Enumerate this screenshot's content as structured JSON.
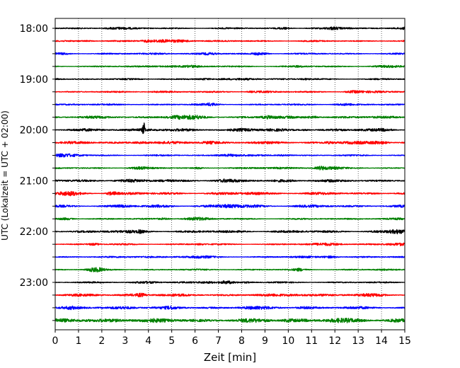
{
  "chart_data": {
    "type": "line",
    "chart_kind": "helicorder",
    "xlabel": "Zeit  [min]",
    "ylabel": "UTC (Lokalzeit = UTC + 02:00)",
    "xlim": [
      0,
      15
    ],
    "xticks": [
      0,
      1,
      2,
      3,
      4,
      5,
      6,
      7,
      8,
      9,
      10,
      11,
      12,
      13,
      14,
      15
    ],
    "x_gridlines": "dotted, every 1 min",
    "y_tick_labels": [
      "18:00",
      "19:00",
      "20:00",
      "21:00",
      "22:00",
      "23:00"
    ],
    "trace_interval_minutes": 15,
    "color_cycle": [
      "#000000",
      "#ff0000",
      "#0000ff",
      "#008000"
    ],
    "traces": [
      {
        "start": "18:00",
        "color": "#000000",
        "amplitude": "low"
      },
      {
        "start": "18:15",
        "color": "#ff0000",
        "amplitude": "low"
      },
      {
        "start": "18:30",
        "color": "#0000ff",
        "amplitude": "low"
      },
      {
        "start": "18:45",
        "color": "#008000",
        "amplitude": "low"
      },
      {
        "start": "19:00",
        "color": "#000000",
        "amplitude": "low"
      },
      {
        "start": "19:15",
        "color": "#ff0000",
        "amplitude": "low"
      },
      {
        "start": "19:30",
        "color": "#0000ff",
        "amplitude": "low"
      },
      {
        "start": "19:45",
        "color": "#008000",
        "amplitude": "medium"
      },
      {
        "start": "20:00",
        "color": "#000000",
        "amplitude": "medium",
        "event_at_min": 3.8
      },
      {
        "start": "20:15",
        "color": "#ff0000",
        "amplitude": "medium"
      },
      {
        "start": "20:30",
        "color": "#0000ff",
        "amplitude": "low"
      },
      {
        "start": "20:45",
        "color": "#008000",
        "amplitude": "low"
      },
      {
        "start": "21:00",
        "color": "#000000",
        "amplitude": "medium"
      },
      {
        "start": "21:15",
        "color": "#ff0000",
        "amplitude": "medium"
      },
      {
        "start": "21:30",
        "color": "#0000ff",
        "amplitude": "medium"
      },
      {
        "start": "21:45",
        "color": "#008000",
        "amplitude": "low"
      },
      {
        "start": "22:00",
        "color": "#000000",
        "amplitude": "medium"
      },
      {
        "start": "22:15",
        "color": "#ff0000",
        "amplitude": "low"
      },
      {
        "start": "22:30",
        "color": "#0000ff",
        "amplitude": "low"
      },
      {
        "start": "22:45",
        "color": "#008000",
        "amplitude": "low"
      },
      {
        "start": "23:00",
        "color": "#000000",
        "amplitude": "low"
      },
      {
        "start": "23:15",
        "color": "#ff0000",
        "amplitude": "medium"
      },
      {
        "start": "23:30",
        "color": "#0000ff",
        "amplitude": "medium"
      },
      {
        "start": "23:45",
        "color": "#008000",
        "amplitude": "high"
      }
    ]
  }
}
